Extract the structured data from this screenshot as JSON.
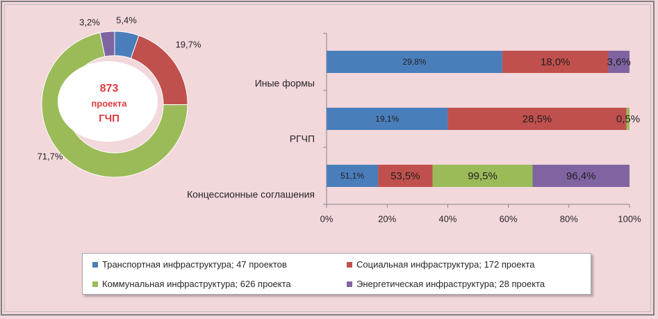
{
  "chart_data": [
    {
      "type": "pie",
      "center_label": [
        "873",
        "проекта",
        "ГЧП"
      ],
      "slices": [
        {
          "label": "5,4%",
          "value": 5.4,
          "color": "#4a7ebb"
        },
        {
          "label": "19,7%",
          "value": 19.7,
          "color": "#c0504d"
        },
        {
          "label": "71,7%",
          "value": 71.7,
          "color": "#9bbb59"
        },
        {
          "label": "3,2%",
          "value": 3.2,
          "color": "#8064a2"
        }
      ]
    },
    {
      "type": "bar",
      "orientation": "horizontal",
      "stacked": "percent",
      "categories": [
        "Иные формы",
        "РГЧП",
        "Концессионные соглашения"
      ],
      "series": [
        {
          "name": "Транспортная инфраструктура; 47 проектов",
          "color": "#4a7ebb",
          "values": [
            58,
            40,
            17
          ],
          "labels": [
            "29,8%",
            "19,1%",
            "51,1%"
          ]
        },
        {
          "name": "Социальная  инфраструктура; 172 проекта",
          "color": "#c0504d",
          "values": [
            35,
            59,
            18
          ],
          "labels": [
            "18,0%",
            "28,5%",
            "53,5%"
          ]
        },
        {
          "name": "Коммунальная  инфраструктура; 626 проекта",
          "color": "#9bbb59",
          "values": [
            0,
            1,
            33
          ],
          "labels": [
            "",
            "0,5%",
            "99,5%"
          ]
        },
        {
          "name": "Энергетическая инфраструктура; 28 проекта",
          "color": "#8064a2",
          "values": [
            7,
            0,
            32
          ],
          "labels": [
            "3,6%",
            "",
            "96,4%"
          ]
        }
      ],
      "xlim": [
        0,
        100
      ],
      "xticks": [
        "0%",
        "20%",
        "40%",
        "60%",
        "80%",
        "100%"
      ],
      "legend": "bottom"
    }
  ]
}
